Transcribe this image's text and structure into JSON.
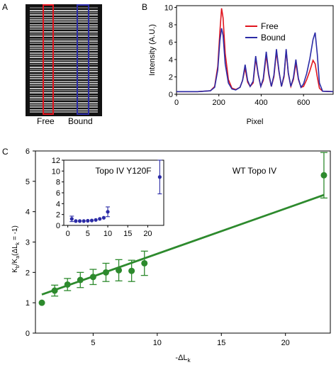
{
  "panels": {
    "a": "A",
    "b": "B",
    "c": "C"
  },
  "gel": {
    "lane_labels": [
      "Free",
      "Bound"
    ],
    "colors": {
      "free": "#e0141e",
      "bound": "#2b2ba6"
    }
  },
  "chart_data": [
    {
      "type": "line",
      "xlabel": "Pixel",
      "ylabel": "Intensity (A.U.)",
      "xlim": [
        0,
        740
      ],
      "ylim": [
        0,
        10.2
      ],
      "xticks": [
        "0",
        "200",
        "400",
        "600"
      ],
      "yticks": [
        "0",
        "2",
        "4",
        "6",
        "8",
        "10"
      ],
      "legend_position": "top-right",
      "grid": false,
      "series": [
        {
          "name": "Free",
          "color": "#e0141e",
          "x": [
            0,
            100,
            160,
            180,
            195,
            205,
            213,
            220,
            230,
            245,
            262,
            280,
            300,
            312,
            324,
            336,
            348,
            362,
            374,
            386,
            398,
            410,
            424,
            436,
            448,
            460,
            472,
            484,
            496,
            508,
            518,
            528,
            540,
            552,
            564,
            576,
            588,
            600,
            615,
            630,
            645,
            655,
            665,
            675,
            690,
            740
          ],
          "y": [
            0.3,
            0.3,
            0.4,
            0.9,
            3.2,
            7.2,
            9.9,
            8.8,
            4.7,
            1.7,
            0.7,
            0.55,
            0.8,
            1.6,
            3.0,
            1.4,
            0.9,
            1.3,
            4.1,
            2.2,
            0.9,
            1.6,
            4.5,
            2.2,
            0.9,
            2.0,
            4.9,
            2.6,
            0.9,
            2.0,
            5.0,
            2.4,
            0.9,
            1.7,
            3.6,
            1.7,
            0.8,
            0.9,
            1.7,
            2.7,
            3.9,
            3.5,
            2.0,
            0.7,
            0.35,
            0.3
          ]
        },
        {
          "name": "Bound",
          "color": "#2b2ba6",
          "x": [
            0,
            100,
            160,
            180,
            195,
            205,
            213,
            220,
            230,
            245,
            262,
            280,
            300,
            312,
            324,
            336,
            348,
            362,
            374,
            386,
            398,
            410,
            424,
            436,
            448,
            460,
            472,
            484,
            496,
            508,
            518,
            528,
            540,
            552,
            564,
            576,
            588,
            600,
            615,
            630,
            645,
            655,
            665,
            675,
            690,
            740
          ],
          "y": [
            0.3,
            0.3,
            0.4,
            0.8,
            2.8,
            6.2,
            7.6,
            6.8,
            3.5,
            1.3,
            0.6,
            0.5,
            0.8,
            1.6,
            3.4,
            1.6,
            0.9,
            1.5,
            4.4,
            2.3,
            0.9,
            1.8,
            4.9,
            2.4,
            0.9,
            2.2,
            5.2,
            2.7,
            0.9,
            2.2,
            5.2,
            2.5,
            0.9,
            1.9,
            4.0,
            1.8,
            0.8,
            1.2,
            2.4,
            4.1,
            6.3,
            7.1,
            4.6,
            1.3,
            0.35,
            0.3
          ]
        }
      ]
    },
    {
      "type": "scatter",
      "title": "WT Topo IV",
      "xlabel": "-ΔLk",
      "ylabel": "Kb/Ka(ΔLk = -1)",
      "ylabel_parts": {
        "k1": "K",
        "s1": "b",
        "slash": "/K",
        "s2": "a",
        "rest": "(ΔL",
        "s3": "k",
        "end": " = -1)"
      },
      "xlabel_parts": {
        "pre": "-ΔL",
        "sub": "k"
      },
      "xlim": [
        0.5,
        23.5
      ],
      "ylim": [
        0,
        6
      ],
      "xticks": [
        "5",
        "10",
        "15",
        "20"
      ],
      "yticks": [
        "0",
        "1",
        "2",
        "3",
        "4",
        "5",
        "6"
      ],
      "color": "#2d8a2d",
      "x": [
        1,
        2,
        3,
        4,
        5,
        6,
        7,
        8,
        9,
        23
      ],
      "y": [
        1.0,
        1.4,
        1.6,
        1.75,
        1.85,
        2.0,
        2.07,
        2.05,
        2.3,
        5.2
      ],
      "err": [
        0,
        0.18,
        0.2,
        0.25,
        0.25,
        0.3,
        0.35,
        0.35,
        0.4,
        0.75
      ],
      "fit": {
        "x": [
          1,
          23
        ],
        "y": [
          1.27,
          4.55
        ]
      }
    },
    {
      "type": "scatter",
      "title": "Topo IV Y120F",
      "xlim": [
        -1,
        24
      ],
      "ylim": [
        0,
        12
      ],
      "xticks": [
        "0",
        "5",
        "10",
        "15",
        "20"
      ],
      "yticks": [
        "0",
        "2",
        "4",
        "6",
        "8",
        "10",
        "12"
      ],
      "color": "#2b2ba6",
      "x": [
        1,
        2,
        3,
        4,
        5,
        6,
        7,
        8,
        9,
        10,
        23
      ],
      "y": [
        1.2,
        0.8,
        0.8,
        0.8,
        0.85,
        0.9,
        1.0,
        1.2,
        1.4,
        2.5,
        8.9
      ],
      "err": [
        0.5,
        0,
        0,
        0,
        0,
        0,
        0,
        0,
        0,
        0.9,
        3.1
      ]
    }
  ]
}
